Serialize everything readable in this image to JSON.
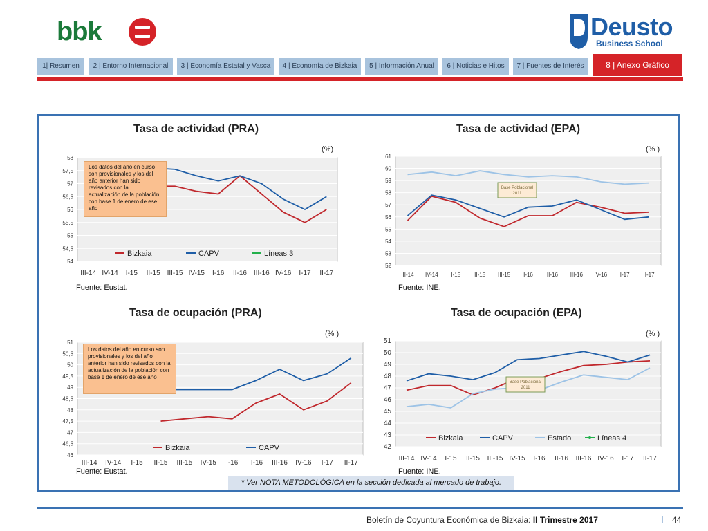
{
  "header": {
    "brand_left": "bbk",
    "brand_right": "Deusto",
    "brand_right_sub": "Business School"
  },
  "nav": {
    "tabs": [
      {
        "label": "1| Resumen"
      },
      {
        "label": "2 | Entorno Internacional"
      },
      {
        "label": "3 | Economía Estatal y Vasca"
      },
      {
        "label": "4 | Economía de Bizkaia"
      },
      {
        "label": "5 | Información Anual"
      },
      {
        "label": "6 | Noticias e Hitos"
      },
      {
        "label": "7 | Fuentes de Interés"
      },
      {
        "label": "8 | Anexo Gráfico"
      }
    ],
    "active_index": 7
  },
  "colors": {
    "accent": "#d52328",
    "frame": "#3a72b3",
    "bizkaia": "#c0282d",
    "capv": "#1f5ea7",
    "estado": "#9dc3e6",
    "lineas": "#22b04b",
    "note": "#fac090"
  },
  "chart_data": [
    {
      "type": "line",
      "title": "Tasa de actividad (PRA)",
      "unit": "(%)",
      "source": "Fuente: Eustat.",
      "ylim": [
        54,
        58
      ],
      "yticks": [
        "54",
        "54,5",
        "55",
        "55,5",
        "56",
        "56,5",
        "57",
        "57,5",
        "58"
      ],
      "categories": [
        "III-14",
        "IV-14",
        "I-15",
        "II-15",
        "III-15",
        "IV-15",
        "I-16",
        "II-16",
        "III-16",
        "IV-16",
        "I-17",
        "II-17"
      ],
      "note": "Los datos del año en curso son provisionales y los del año anterior han sido revisados con la actualización de la población con base 1 de enero de ese año",
      "legend": [
        "Bizkaia",
        "CAPV",
        "Líneas 3"
      ],
      "series": [
        {
          "name": "Bizkaia",
          "color": "#c0282d",
          "values": [
            null,
            null,
            null,
            56.9,
            56.9,
            56.7,
            56.6,
            57.3,
            56.6,
            55.9,
            55.5,
            56.0
          ]
        },
        {
          "name": "CAPV",
          "color": "#1f5ea7",
          "values": [
            null,
            null,
            null,
            57.6,
            57.55,
            57.3,
            57.1,
            57.3,
            57.0,
            56.4,
            56.0,
            56.5
          ]
        }
      ]
    },
    {
      "type": "line",
      "title": "Tasa de actividad (EPA)",
      "unit": "(% )",
      "source": "Fuente: INE.",
      "ylim": [
        52,
        61
      ],
      "yticks": [
        "52",
        "53",
        "54",
        "55",
        "56",
        "57",
        "58",
        "59",
        "60",
        "61"
      ],
      "categories": [
        "III-14",
        "IV-14",
        "I-15",
        "II-15",
        "III-15",
        "I-16",
        "II-16",
        "III-16",
        "IV-16",
        "I-17",
        "II-17"
      ],
      "annotation": "Base Poblacional 2011",
      "series": [
        {
          "name": "Bizkaia",
          "color": "#c0282d",
          "values": [
            55.7,
            57.7,
            57.2,
            55.9,
            55.2,
            56.1,
            56.1,
            57.2,
            56.8,
            56.3,
            56.4
          ]
        },
        {
          "name": "CAPV",
          "color": "#1f5ea7",
          "values": [
            56.1,
            57.8,
            57.4,
            56.7,
            56.0,
            56.8,
            56.9,
            57.4,
            56.6,
            55.8,
            56.0
          ]
        },
        {
          "name": "Estado",
          "color": "#9dc3e6",
          "values": [
            59.5,
            59.7,
            59.4,
            59.8,
            59.5,
            59.3,
            59.4,
            59.3,
            58.9,
            58.7,
            58.8
          ]
        }
      ]
    },
    {
      "type": "line",
      "title": "Tasa de ocupación (PRA)",
      "unit": "(% )",
      "source": "Fuente: Eustat.",
      "ylim": [
        46,
        51
      ],
      "yticks": [
        "46",
        "46,5",
        "47",
        "47,5",
        "48",
        "48,5",
        "49",
        "49,5",
        "50",
        "50,5",
        "51"
      ],
      "categories": [
        "III-14",
        "IV-14",
        "I-15",
        "II-15",
        "III-15",
        "IV-15",
        "I-16",
        "II-16",
        "III-16",
        "IV-16",
        "I-17",
        "II-17"
      ],
      "note": "Los datos del año en curso son provisionales y los del año anterior han sido revisados con la actualización de la población con base 1 de enero de ese año",
      "legend": [
        "Bizkaia",
        "CAPV"
      ],
      "series": [
        {
          "name": "Bizkaia",
          "color": "#c0282d",
          "values": [
            null,
            null,
            null,
            47.5,
            47.6,
            47.7,
            47.6,
            48.3,
            48.7,
            48.0,
            48.4,
            49.2
          ]
        },
        {
          "name": "CAPV",
          "color": "#1f5ea7",
          "values": [
            null,
            null,
            null,
            48.9,
            48.9,
            48.9,
            48.9,
            49.3,
            49.8,
            49.3,
            49.6,
            50.3
          ]
        }
      ]
    },
    {
      "type": "line",
      "title": "Tasa de ocupación (EPA)",
      "unit": "(% )",
      "source": "Fuente: INE.",
      "ylim": [
        42,
        51
      ],
      "yticks": [
        "42",
        "43",
        "44",
        "45",
        "46",
        "47",
        "48",
        "49",
        "50",
        "51"
      ],
      "categories": [
        "III-14",
        "IV-14",
        "I-15",
        "II-15",
        "III-15",
        "IV-15",
        "I-16",
        "II-16",
        "III-16",
        "IV-16",
        "I-17",
        "II-17"
      ],
      "annotation": "Base Poblacional 2011",
      "legend": [
        "Bizkaia",
        "CAPV",
        "Estado",
        "Líneas 4"
      ],
      "series": [
        {
          "name": "Bizkaia",
          "color": "#c0282d",
          "values": [
            46.8,
            47.2,
            47.2,
            46.4,
            47.0,
            47.8,
            47.8,
            48.4,
            48.9,
            49.0,
            49.2,
            49.3
          ]
        },
        {
          "name": "CAPV",
          "color": "#1f5ea7",
          "values": [
            47.6,
            48.2,
            48.0,
            47.7,
            48.3,
            49.4,
            49.5,
            49.8,
            50.1,
            49.7,
            49.2,
            49.8
          ]
        },
        {
          "name": "Estado",
          "color": "#9dc3e6",
          "values": [
            45.4,
            45.6,
            45.3,
            46.5,
            46.9,
            47.0,
            46.8,
            47.5,
            48.1,
            47.9,
            47.7,
            48.7
          ]
        }
      ]
    }
  ],
  "method_note": "* Ver NOTA METODOLÓGICA en la sección dedicada al mercado de trabajo.",
  "footer": {
    "text": "Boletín de Coyuntura Económica de Bizkaia:",
    "bold": "II Trimestre 2017",
    "sep": "I",
    "page": "44"
  }
}
